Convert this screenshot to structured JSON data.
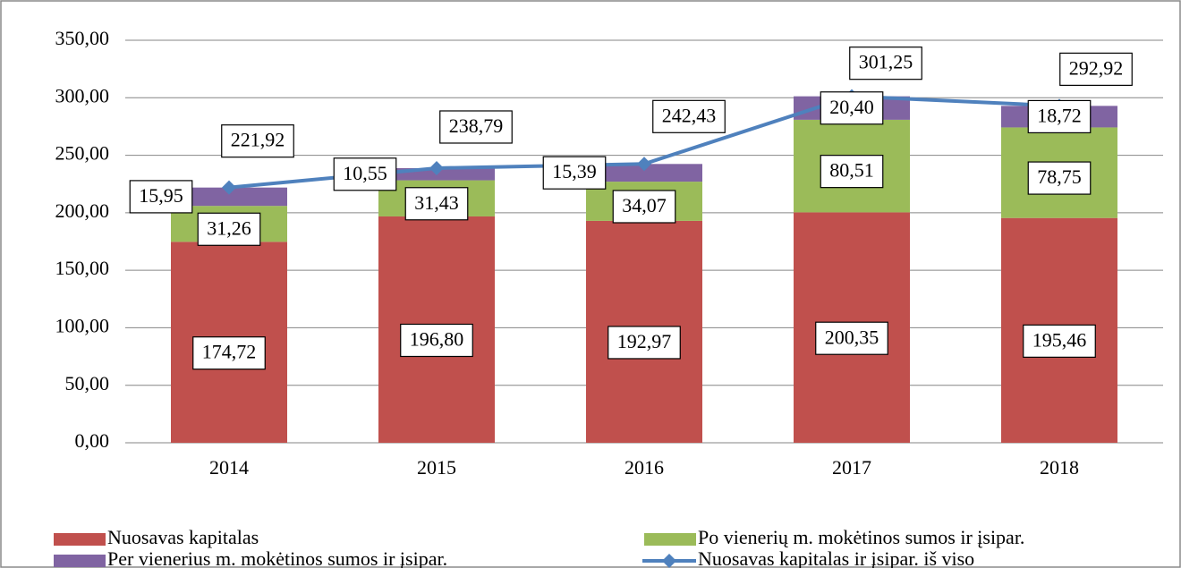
{
  "chart_data": {
    "type": "stacked_bar_line",
    "categories": [
      "2014",
      "2015",
      "2016",
      "2017",
      "2018"
    ],
    "series": [
      {
        "name": "Nuosavas kapitalas",
        "color": "#c0504d",
        "kind": "bar",
        "values": [
          174.72,
          196.8,
          192.97,
          200.35,
          195.46
        ],
        "value_labels": [
          "174,72",
          "196,80",
          "192,97",
          "200,35",
          "195,46"
        ]
      },
      {
        "name": "Po vienerių m. mokėtinos sumos ir įsipar.",
        "color": "#9bbb59",
        "kind": "bar",
        "values": [
          31.26,
          31.43,
          34.07,
          80.51,
          78.75
        ],
        "value_labels": [
          "31,26",
          "31,43",
          "34,07",
          "80,51",
          "78,75"
        ]
      },
      {
        "name": "Per vienerius m. mokėtinos sumos ir įsipar.",
        "color": "#8064a2",
        "kind": "bar",
        "values": [
          15.95,
          10.55,
          15.39,
          20.4,
          18.72
        ],
        "value_labels": [
          "15,95",
          "10,55",
          "15,39",
          "20,40",
          "18,72"
        ]
      },
      {
        "name": "Nuosavas kapitalas ir įsipar. iš viso",
        "color": "#4f81bd",
        "kind": "line",
        "values": [
          221.92,
          238.79,
          242.43,
          301.25,
          292.92
        ],
        "value_labels": [
          "221,92",
          "238,79",
          "242,43",
          "301,25",
          "292,92"
        ]
      }
    ],
    "ylim": [
      0,
      350
    ],
    "yticks": [
      {
        "value": 0,
        "label": "0,00"
      },
      {
        "value": 50,
        "label": "50,00"
      },
      {
        "value": 100,
        "label": "100,00"
      },
      {
        "value": 150,
        "label": "150,00"
      },
      {
        "value": 200,
        "label": "200,00"
      },
      {
        "value": 250,
        "label": "250,00"
      },
      {
        "value": 300,
        "label": "300,00"
      },
      {
        "value": 350,
        "label": "350,00"
      }
    ],
    "grid": true
  }
}
